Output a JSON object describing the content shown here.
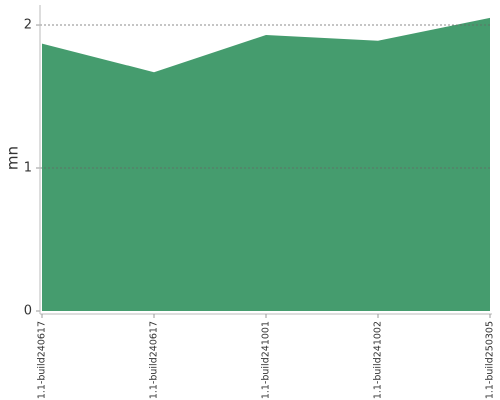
{
  "chart_data": {
    "type": "area",
    "y_label": "mn",
    "categories": [
      "1.1-build240617",
      "1.1-build240617",
      "1.1-build241001",
      "1.1-build241002",
      "1.1-build250305"
    ],
    "values": [
      1.87,
      1.67,
      1.93,
      1.89,
      2.05
    ],
    "color": "#459c6e",
    "ylim": [
      0,
      2.14
    ],
    "yticks": [
      0,
      1,
      2
    ],
    "grid": true
  }
}
